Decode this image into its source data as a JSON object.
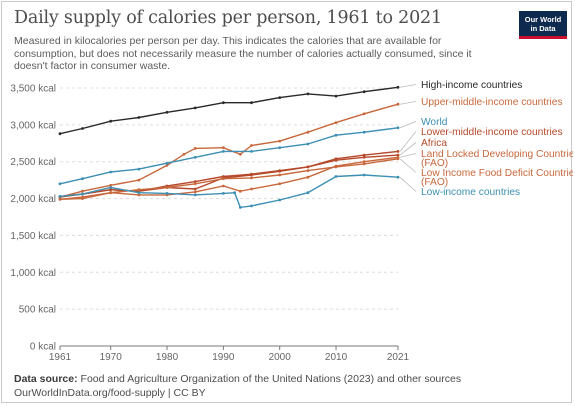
{
  "header": {
    "title": "Daily supply of calories per person, 1961 to 2021",
    "subtitle": "Measured in kilocalories per person per day. This indicates the calories that are available for consumption, but does not necessarily measure the number of calories actually consumed, since it doesn't factor in consumer waste.",
    "logo_line1": "Our World",
    "logo_line2": "in Data"
  },
  "footer": {
    "source_label": "Data source:",
    "source_text": "Food and Agriculture Organization of the United Nations (2023) and other sources",
    "line2": "OurWorldInData.org/food-supply | CC BY"
  },
  "colors": {
    "dark": "#2a2a2a",
    "orange": "#c8683c",
    "brown": "#b5492a",
    "blue": "#3d8fb3",
    "grid": "#dddddd",
    "axis": "#777777"
  },
  "chart_data": {
    "type": "line",
    "title": "Daily supply of calories per person, 1961 to 2021",
    "ylim": [
      0,
      3500
    ],
    "yticks": [
      0,
      500,
      1000,
      1500,
      2000,
      2500,
      3000,
      3500
    ],
    "ytick_labels": [
      "0 kcal",
      "500 kcal",
      "1,000 kcal",
      "1,500 kcal",
      "2,000 kcal",
      "2,500 kcal",
      "3,000 kcal",
      "3,500 kcal"
    ],
    "xlim": [
      1961,
      2021
    ],
    "xticks": [
      1961,
      1970,
      1980,
      1990,
      2000,
      2010,
      2021
    ],
    "grid": true,
    "legend": "right-labels",
    "series": [
      {
        "name": "High-income countries",
        "color": "#2a2a2a",
        "points": [
          [
            1961,
            2880
          ],
          [
            1965,
            2950
          ],
          [
            1970,
            3050
          ],
          [
            1975,
            3100
          ],
          [
            1980,
            3170
          ],
          [
            1985,
            3230
          ],
          [
            1990,
            3300
          ],
          [
            1995,
            3300
          ],
          [
            2000,
            3370
          ],
          [
            2005,
            3420
          ],
          [
            2010,
            3390
          ],
          [
            2015,
            3450
          ],
          [
            2021,
            3510
          ]
        ]
      },
      {
        "name": "Upper-middle-income countries",
        "color": "#c8683c",
        "points": [
          [
            1961,
            2020
          ],
          [
            1965,
            2100
          ],
          [
            1970,
            2180
          ],
          [
            1975,
            2250
          ],
          [
            1980,
            2450
          ],
          [
            1983,
            2600
          ],
          [
            1985,
            2680
          ],
          [
            1990,
            2690
          ],
          [
            1993,
            2600
          ],
          [
            1995,
            2720
          ],
          [
            2000,
            2780
          ],
          [
            2005,
            2900
          ],
          [
            2010,
            3030
          ],
          [
            2015,
            3150
          ],
          [
            2021,
            3280
          ]
        ]
      },
      {
        "name": "World",
        "color": "#3d8fb3",
        "points": [
          [
            1961,
            2200
          ],
          [
            1965,
            2270
          ],
          [
            1970,
            2360
          ],
          [
            1975,
            2400
          ],
          [
            1980,
            2480
          ],
          [
            1985,
            2560
          ],
          [
            1990,
            2640
          ],
          [
            1995,
            2640
          ],
          [
            2000,
            2690
          ],
          [
            2005,
            2740
          ],
          [
            2010,
            2860
          ],
          [
            2015,
            2900
          ],
          [
            2021,
            2960
          ]
        ]
      },
      {
        "name": "Lower-middle-income countries",
        "color": "#b5492a",
        "points": [
          [
            1961,
            2030
          ],
          [
            1965,
            2060
          ],
          [
            1970,
            2120
          ],
          [
            1975,
            2100
          ],
          [
            1980,
            2170
          ],
          [
            1985,
            2230
          ],
          [
            1990,
            2300
          ],
          [
            1995,
            2330
          ],
          [
            2000,
            2380
          ],
          [
            2005,
            2430
          ],
          [
            2010,
            2540
          ],
          [
            2015,
            2590
          ],
          [
            2021,
            2640
          ]
        ]
      },
      {
        "name": "Africa",
        "color": "#b5492a",
        "points": [
          [
            1961,
            2020
          ],
          [
            1965,
            2060
          ],
          [
            1970,
            2120
          ],
          [
            1975,
            2100
          ],
          [
            1980,
            2150
          ],
          [
            1985,
            2130
          ],
          [
            1990,
            2280
          ],
          [
            1995,
            2320
          ],
          [
            2000,
            2370
          ],
          [
            2005,
            2430
          ],
          [
            2010,
            2520
          ],
          [
            2015,
            2560
          ],
          [
            2021,
            2590
          ]
        ]
      },
      {
        "name": "Land Locked Developing Countries (FAO)",
        "color": "#c8683c",
        "points": [
          [
            1961,
            1990
          ],
          [
            1965,
            2020
          ],
          [
            1970,
            2080
          ],
          [
            1975,
            2050
          ],
          [
            1980,
            2050
          ],
          [
            1985,
            2090
          ],
          [
            1990,
            2170
          ],
          [
            1993,
            2100
          ],
          [
            1995,
            2130
          ],
          [
            2000,
            2200
          ],
          [
            2005,
            2290
          ],
          [
            2010,
            2440
          ],
          [
            2015,
            2500
          ],
          [
            2021,
            2560
          ]
        ]
      },
      {
        "name": "Low Income Food Deficit Countries (FAO)",
        "color": "#c8683c",
        "points": [
          [
            1961,
            1990
          ],
          [
            1965,
            2000
          ],
          [
            1970,
            2080
          ],
          [
            1975,
            2120
          ],
          [
            1980,
            2150
          ],
          [
            1985,
            2200
          ],
          [
            1990,
            2270
          ],
          [
            1995,
            2280
          ],
          [
            2000,
            2320
          ],
          [
            2005,
            2380
          ],
          [
            2010,
            2430
          ],
          [
            2015,
            2470
          ],
          [
            2021,
            2540
          ]
        ]
      },
      {
        "name": "Low-income countries",
        "color": "#3d8fb3",
        "points": [
          [
            1961,
            2030
          ],
          [
            1965,
            2060
          ],
          [
            1970,
            2150
          ],
          [
            1975,
            2080
          ],
          [
            1980,
            2070
          ],
          [
            1985,
            2050
          ],
          [
            1990,
            2070
          ],
          [
            1992,
            2080
          ],
          [
            1993,
            1880
          ],
          [
            1995,
            1900
          ],
          [
            2000,
            1980
          ],
          [
            2005,
            2080
          ],
          [
            2010,
            2300
          ],
          [
            2015,
            2320
          ],
          [
            2021,
            2290
          ]
        ]
      }
    ],
    "legend_labels": [
      {
        "text": "High-income countries",
        "color": "#2a2a2a"
      },
      {
        "text": "Upper-middle-income countries",
        "color": "#c8683c"
      },
      {
        "text": "World",
        "color": "#3d8fb3"
      },
      {
        "text": "Lower-middle-income countries",
        "color": "#b5492a"
      },
      {
        "text": "Africa",
        "color": "#b5492a"
      },
      {
        "text": "Land Locked Developing Countries",
        "color": "#c8683c"
      },
      {
        "text": "(FAO)",
        "color": "#c8683c"
      },
      {
        "text": "Low Income Food Deficit Countries",
        "color": "#c8683c"
      },
      {
        "text": "(FAO)",
        "color": "#c8683c"
      },
      {
        "text": "Low-income countries",
        "color": "#3d8fb3"
      }
    ]
  }
}
